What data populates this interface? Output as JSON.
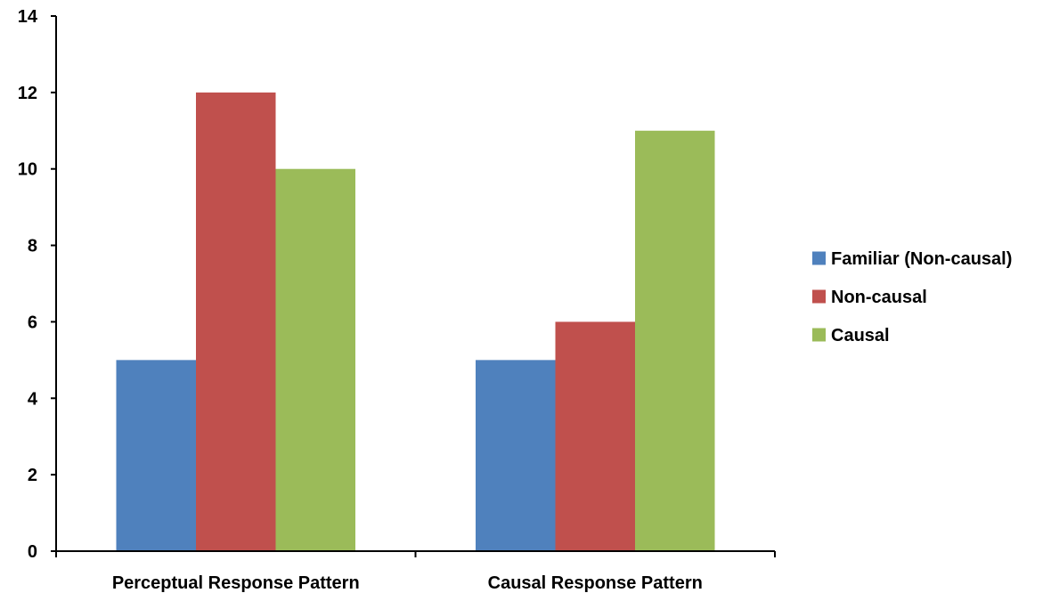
{
  "chart_data": {
    "type": "bar",
    "categories": [
      "Perceptual Response Pattern",
      "Causal Response Pattern"
    ],
    "series": [
      {
        "name": "Familiar (Non-causal)",
        "values": [
          5,
          5
        ],
        "color": "#4f81bd"
      },
      {
        "name": "Non-causal",
        "values": [
          12,
          6
        ],
        "color": "#c0504d"
      },
      {
        "name": "Causal",
        "values": [
          10,
          11
        ],
        "color": "#9bbb59"
      }
    ],
    "title": "",
    "xlabel": "",
    "ylabel": "",
    "ylim": [
      0,
      14
    ],
    "yticks": [
      0,
      2,
      4,
      6,
      8,
      10,
      12,
      14
    ],
    "grid": false,
    "legend_position": "right"
  }
}
